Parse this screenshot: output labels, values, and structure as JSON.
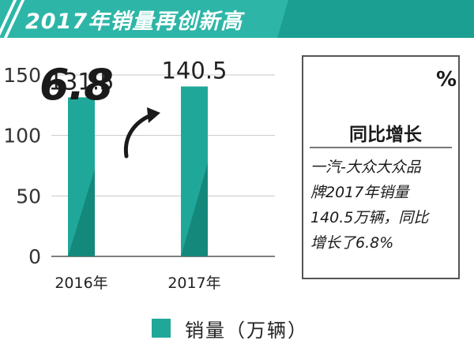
{
  "header": {
    "title": "2017年销量再创新高"
  },
  "chart_data": {
    "type": "bar",
    "categories": [
      "2016年",
      "2017年"
    ],
    "values": [
      131.5,
      140.5
    ],
    "value_labels": [
      "131.5",
      "140.5"
    ],
    "ylim": [
      0,
      150
    ],
    "yticks": [
      "0",
      "50",
      "100",
      "150"
    ],
    "legend": "销量（万辆）",
    "legend_position": "bottom",
    "grid": true,
    "bar_color": "#1fa89a",
    "bar_shade_color": "#138276"
  },
  "callout": {
    "number": "6.8",
    "percent": "%",
    "subtitle": "同比增长",
    "body_lines": [
      "一汽-大众大众品",
      "牌2017年销量",
      "140.5万辆，同比",
      "增长了6.8%"
    ]
  },
  "colors": {
    "header_dark": "#1a9f92",
    "header_light": "#2db6a7",
    "bar": "#1fa89a"
  }
}
